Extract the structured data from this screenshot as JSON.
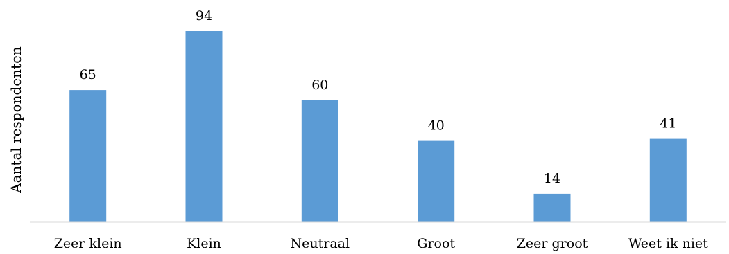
{
  "chart_data": {
    "type": "bar",
    "title": "",
    "xlabel": "",
    "ylabel": "Aantal respondenten",
    "categories": [
      "Zeer klein",
      "Klein",
      "Neutraal",
      "Groot",
      "Zeer groot",
      "Weet ik niet"
    ],
    "values": [
      65,
      94,
      60,
      40,
      14,
      41
    ],
    "ylim": [
      0,
      94
    ],
    "grid": false,
    "legend": "none",
    "bar_color": "#5b9bd5",
    "axis_color": "#d9d9d9"
  }
}
